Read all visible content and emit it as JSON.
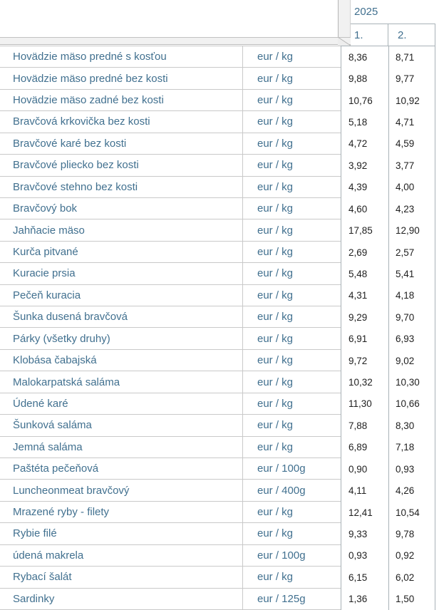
{
  "table": {
    "year_header": "2025",
    "period_columns": [
      "1.",
      "2."
    ],
    "rows": [
      {
        "name": "Hovädzie mäso predné s kosťou",
        "unit": "eur / kg",
        "values": [
          "8,36",
          "8,71"
        ]
      },
      {
        "name": "Hovädzie mäso predné bez kosti",
        "unit": "eur / kg",
        "values": [
          "9,88",
          "9,77"
        ]
      },
      {
        "name": "Hovädzie mäso zadné bez kosti",
        "unit": "eur / kg",
        "values": [
          "10,76",
          "10,92"
        ]
      },
      {
        "name": "Bravčová krkovička bez kosti",
        "unit": "eur / kg",
        "values": [
          "5,18",
          "4,71"
        ]
      },
      {
        "name": "Bravčové karé bez kosti",
        "unit": "eur / kg",
        "values": [
          "4,72",
          "4,59"
        ]
      },
      {
        "name": "Bravčové pliecko bez kosti",
        "unit": "eur / kg",
        "values": [
          "3,92",
          "3,77"
        ]
      },
      {
        "name": "Bravčové stehno bez kosti",
        "unit": "eur / kg",
        "values": [
          "4,39",
          "4,00"
        ]
      },
      {
        "name": "Bravčový bok",
        "unit": "eur / kg",
        "values": [
          "4,60",
          "4,23"
        ]
      },
      {
        "name": "Jahňacie mäso",
        "unit": "eur / kg",
        "values": [
          "17,85",
          "12,90"
        ]
      },
      {
        "name": "Kurča pitvané",
        "unit": "eur / kg",
        "values": [
          "2,69",
          "2,57"
        ]
      },
      {
        "name": "Kuracie prsia",
        "unit": "eur / kg",
        "values": [
          "5,48",
          "5,41"
        ]
      },
      {
        "name": "Pečeň kuracia",
        "unit": "eur / kg",
        "values": [
          "4,31",
          "4,18"
        ]
      },
      {
        "name": "Šunka dusená bravčová",
        "unit": "eur / kg",
        "values": [
          "9,29",
          "9,70"
        ]
      },
      {
        "name": "Párky (všetky druhy)",
        "unit": "eur / kg",
        "values": [
          "6,91",
          "6,93"
        ]
      },
      {
        "name": "Klobása čabajská",
        "unit": "eur / kg",
        "values": [
          "9,72",
          "9,02"
        ]
      },
      {
        "name": "Malokarpatská saláma",
        "unit": "eur / kg",
        "values": [
          "10,32",
          "10,30"
        ]
      },
      {
        "name": "Údené karé",
        "unit": "eur / kg",
        "values": [
          "11,30",
          "10,66"
        ]
      },
      {
        "name": "Šunková saláma",
        "unit": "eur / kg",
        "values": [
          "7,88",
          "8,30"
        ]
      },
      {
        "name": "Jemná saláma",
        "unit": "eur / kg",
        "values": [
          "6,89",
          "7,18"
        ]
      },
      {
        "name": "Paštéta pečeňová",
        "unit": "eur / 100g",
        "values": [
          "0,90",
          "0,93"
        ]
      },
      {
        "name": "Luncheonmeat bravčový",
        "unit": "eur / 400g",
        "values": [
          "4,11",
          "4,26"
        ]
      },
      {
        "name": "Mrazené ryby - filety",
        "unit": "eur / kg",
        "values": [
          "12,41",
          "10,54"
        ]
      },
      {
        "name": "Rybie filé",
        "unit": "eur / kg",
        "values": [
          "9,33",
          "9,78"
        ]
      },
      {
        "name": "údená makrela",
        "unit": "eur / 100g",
        "values": [
          "0,93",
          "0,92"
        ]
      },
      {
        "name": "Rybací šalát",
        "unit": "eur / kg",
        "values": [
          "6,15",
          "6,02"
        ]
      },
      {
        "name": "Sardinky",
        "unit": "eur / 125g",
        "values": [
          "1,36",
          "1,50"
        ]
      }
    ]
  },
  "colors": {
    "label_blue": "#41708f",
    "value_text": "#1f1f1f",
    "grid_left_pane": "#c9c9c9",
    "grid_right_pane": "#a9b2b7",
    "splitter_fill": "#f1f1f1",
    "splitter_edge": "#b5b5b5"
  }
}
